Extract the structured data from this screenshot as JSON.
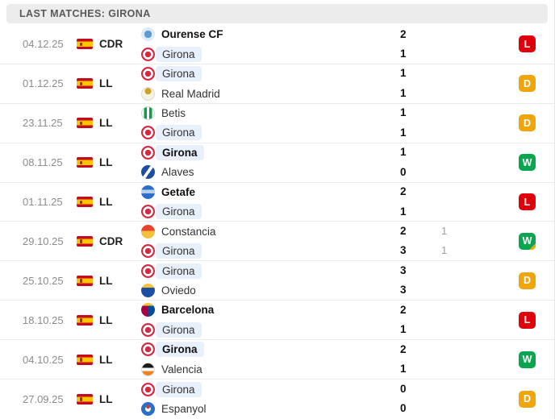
{
  "header": {
    "title": "LAST MATCHES: GIRONA"
  },
  "colors": {
    "win": "#0aa64f",
    "draw": "#f0a60a",
    "loss": "#e0000b",
    "highlight_pill": "#e7f0fb",
    "header_bg": "#ececec"
  },
  "matches": [
    {
      "date": "04.12.25",
      "competition": "CDR",
      "flag": "spain",
      "result": "L",
      "badge_corner": false,
      "teams": [
        {
          "name": "Ourense CF",
          "logo": "ourense",
          "bold": true,
          "highlight": false,
          "score": "2",
          "score2": ""
        },
        {
          "name": "Girona",
          "logo": "girona",
          "bold": false,
          "highlight": true,
          "score": "1",
          "score2": ""
        }
      ]
    },
    {
      "date": "01.12.25",
      "competition": "LL",
      "flag": "spain",
      "result": "D",
      "badge_corner": false,
      "teams": [
        {
          "name": "Girona",
          "logo": "girona",
          "bold": false,
          "highlight": true,
          "score": "1",
          "score2": ""
        },
        {
          "name": "Real Madrid",
          "logo": "realmadrid",
          "bold": false,
          "highlight": false,
          "score": "1",
          "score2": ""
        }
      ]
    },
    {
      "date": "23.11.25",
      "competition": "LL",
      "flag": "spain",
      "result": "D",
      "badge_corner": false,
      "teams": [
        {
          "name": "Betis",
          "logo": "betis",
          "bold": false,
          "highlight": false,
          "score": "1",
          "score2": ""
        },
        {
          "name": "Girona",
          "logo": "girona",
          "bold": false,
          "highlight": true,
          "score": "1",
          "score2": ""
        }
      ]
    },
    {
      "date": "08.11.25",
      "competition": "LL",
      "flag": "spain",
      "result": "W",
      "badge_corner": false,
      "teams": [
        {
          "name": "Girona",
          "logo": "girona",
          "bold": true,
          "highlight": true,
          "score": "1",
          "score2": ""
        },
        {
          "name": "Alaves",
          "logo": "alaves",
          "bold": false,
          "highlight": false,
          "score": "0",
          "score2": ""
        }
      ]
    },
    {
      "date": "01.11.25",
      "competition": "LL",
      "flag": "spain",
      "result": "L",
      "badge_corner": false,
      "teams": [
        {
          "name": "Getafe",
          "logo": "getafe",
          "bold": true,
          "highlight": false,
          "score": "2",
          "score2": ""
        },
        {
          "name": "Girona",
          "logo": "girona",
          "bold": false,
          "highlight": true,
          "score": "1",
          "score2": ""
        }
      ]
    },
    {
      "date": "29.10.25",
      "competition": "CDR",
      "flag": "spain",
      "result": "W",
      "badge_corner": true,
      "teams": [
        {
          "name": "Constancia",
          "logo": "constancia",
          "bold": false,
          "highlight": false,
          "score": "2",
          "score2": "1"
        },
        {
          "name": "Girona",
          "logo": "girona",
          "bold": false,
          "highlight": true,
          "score": "3",
          "score2": "1"
        }
      ]
    },
    {
      "date": "25.10.25",
      "competition": "LL",
      "flag": "spain",
      "result": "D",
      "badge_corner": false,
      "teams": [
        {
          "name": "Girona",
          "logo": "girona",
          "bold": false,
          "highlight": true,
          "score": "3",
          "score2": ""
        },
        {
          "name": "Oviedo",
          "logo": "oviedo",
          "bold": false,
          "highlight": false,
          "score": "3",
          "score2": ""
        }
      ]
    },
    {
      "date": "18.10.25",
      "competition": "LL",
      "flag": "spain",
      "result": "L",
      "badge_corner": false,
      "teams": [
        {
          "name": "Barcelona",
          "logo": "barcelona",
          "bold": true,
          "highlight": false,
          "score": "2",
          "score2": ""
        },
        {
          "name": "Girona",
          "logo": "girona",
          "bold": false,
          "highlight": true,
          "score": "1",
          "score2": ""
        }
      ]
    },
    {
      "date": "04.10.25",
      "competition": "LL",
      "flag": "spain",
      "result": "W",
      "badge_corner": false,
      "teams": [
        {
          "name": "Girona",
          "logo": "girona",
          "bold": true,
          "highlight": true,
          "score": "2",
          "score2": ""
        },
        {
          "name": "Valencia",
          "logo": "valencia",
          "bold": false,
          "highlight": false,
          "score": "1",
          "score2": ""
        }
      ]
    },
    {
      "date": "27.09.25",
      "competition": "LL",
      "flag": "spain",
      "result": "D",
      "badge_corner": false,
      "teams": [
        {
          "name": "Girona",
          "logo": "girona",
          "bold": false,
          "highlight": true,
          "score": "0",
          "score2": ""
        },
        {
          "name": "Espanyol",
          "logo": "espanyol",
          "bold": false,
          "highlight": false,
          "score": "0",
          "score2": ""
        }
      ]
    }
  ]
}
